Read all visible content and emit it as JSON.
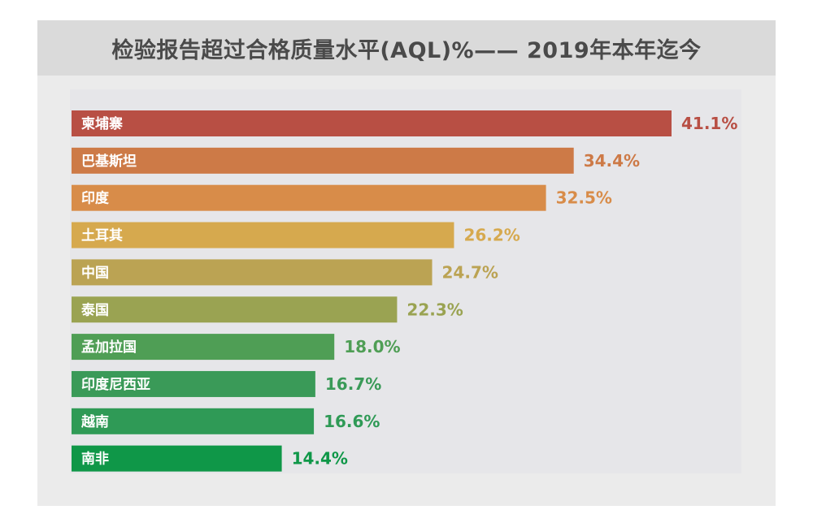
{
  "chart_data": {
    "type": "bar",
    "orientation": "horizontal",
    "title": "检验报告超过合格质量水平(AQL)%—— 2019年本年迄今",
    "categories": [
      "柬埔寨",
      "巴基斯坦",
      "印度",
      "土耳其",
      "中国",
      "泰国",
      "孟加拉国",
      "印度尼西亚",
      "越南",
      "南非"
    ],
    "values": [
      41.1,
      34.4,
      32.5,
      26.2,
      24.7,
      22.3,
      18.0,
      16.7,
      16.6,
      14.4
    ],
    "value_labels": [
      "41.1%",
      "34.4%",
      "32.5%",
      "26.2%",
      "24.7%",
      "22.3%",
      "18.0%",
      "16.7%",
      "16.6%",
      "14.4%"
    ],
    "colors": [
      "#b84f44",
      "#cd7a47",
      "#d88c49",
      "#d6a94e",
      "#bba353",
      "#9aa352",
      "#4f9e55",
      "#3a9a58",
      "#2f9a56",
      "#0f9748"
    ],
    "xlim": [
      0,
      41.1
    ],
    "grid": false,
    "legend": "none"
  }
}
